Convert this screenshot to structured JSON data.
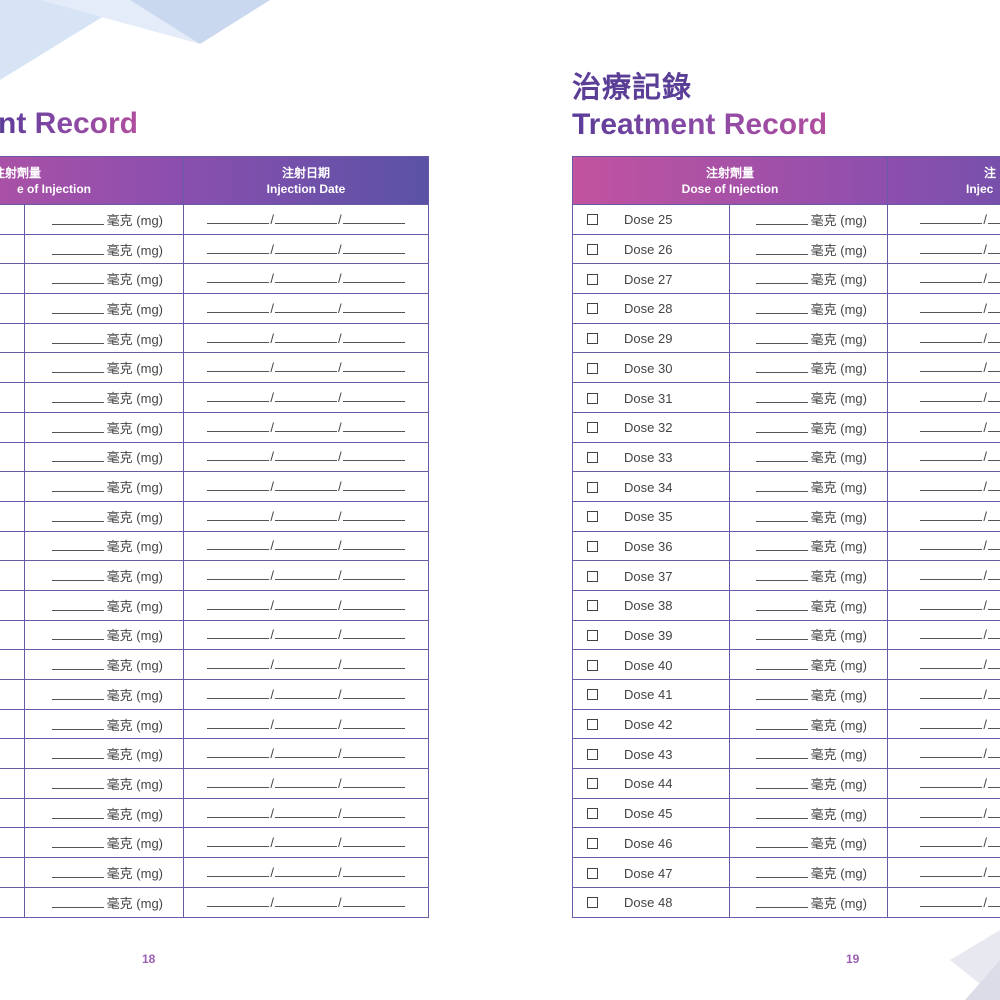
{
  "left_page": {
    "title_en": "nt Record",
    "header": {
      "dose_zh": "注射劑量",
      "dose_en": "e of Injection",
      "date_zh": "注射日期",
      "date_en": "Injection Date"
    },
    "unit": "毫克 (mg)",
    "date_sep": "/",
    "row_count": 24,
    "page_number": "18"
  },
  "right_page": {
    "title_zh": "治療記錄",
    "title_en": "Treatment Record",
    "header": {
      "dose_zh": "注射劑量",
      "dose_en": "Dose of Injection",
      "date_zh": "注",
      "date_en": "Injec"
    },
    "unit": "毫克 (mg)",
    "date_sep": "/",
    "doses": [
      "Dose 25",
      "Dose 26",
      "Dose 27",
      "Dose 28",
      "Dose 29",
      "Dose 30",
      "Dose 31",
      "Dose 32",
      "Dose 33",
      "Dose 34",
      "Dose 35",
      "Dose 36",
      "Dose 37",
      "Dose 38",
      "Dose 39",
      "Dose 40",
      "Dose 41",
      "Dose 42",
      "Dose 43",
      "Dose 44",
      "Dose 45",
      "Dose 46",
      "Dose 47",
      "Dose 48"
    ],
    "page_number": "19"
  },
  "colors": {
    "accent_purple": "#5b3e96",
    "accent_magenta": "#b04e9e",
    "border": "#6a5aa6",
    "page_number": "#9a5fb0"
  }
}
